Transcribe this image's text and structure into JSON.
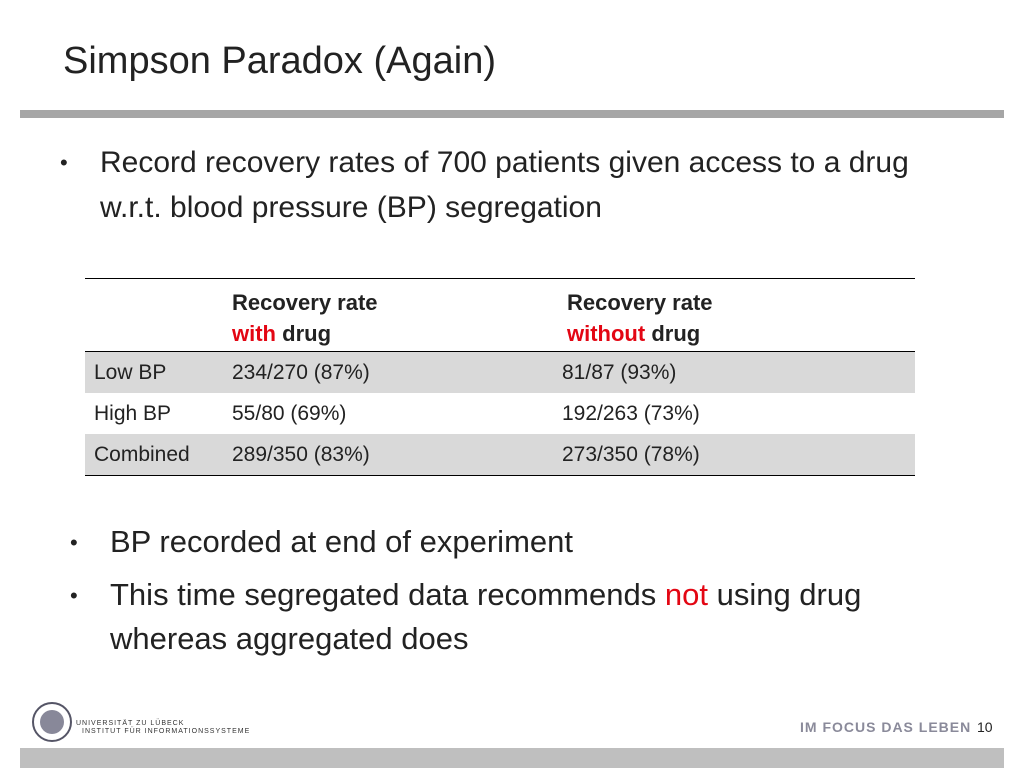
{
  "title": "Simpson Paradox (Again)",
  "intro": "Record recovery rates of 700 patients given access to a drug w.r.t. blood pressure (BP) segregation",
  "table": {
    "columns": [
      {
        "line1": "Recovery rate",
        "highlight": "with",
        "rest": "drug"
      },
      {
        "line1": "Recovery rate",
        "highlight": "without",
        "rest": "drug"
      }
    ],
    "rows": [
      [
        "Low BP",
        "234/270 (87%)",
        "81/87 (93%)"
      ],
      [
        "High BP",
        "55/80 (69%)",
        "192/263 (73%)"
      ],
      [
        "Combined",
        "289/350 (83%)",
        "273/350 (78%)"
      ]
    ]
  },
  "bullets": [
    [
      "BP recorded at end of experiment"
    ],
    [
      "This time segregated data recommends",
      "not",
      "using drug whereas aggregated does"
    ]
  ],
  "footer": {
    "university": "UNIVERSITÄT ZU LÜBECK",
    "institute": "INSTITUT FÜR INFORMATIONSSYSTEME",
    "motto": "IM FOCUS DAS LEBEN",
    "page": "10"
  }
}
